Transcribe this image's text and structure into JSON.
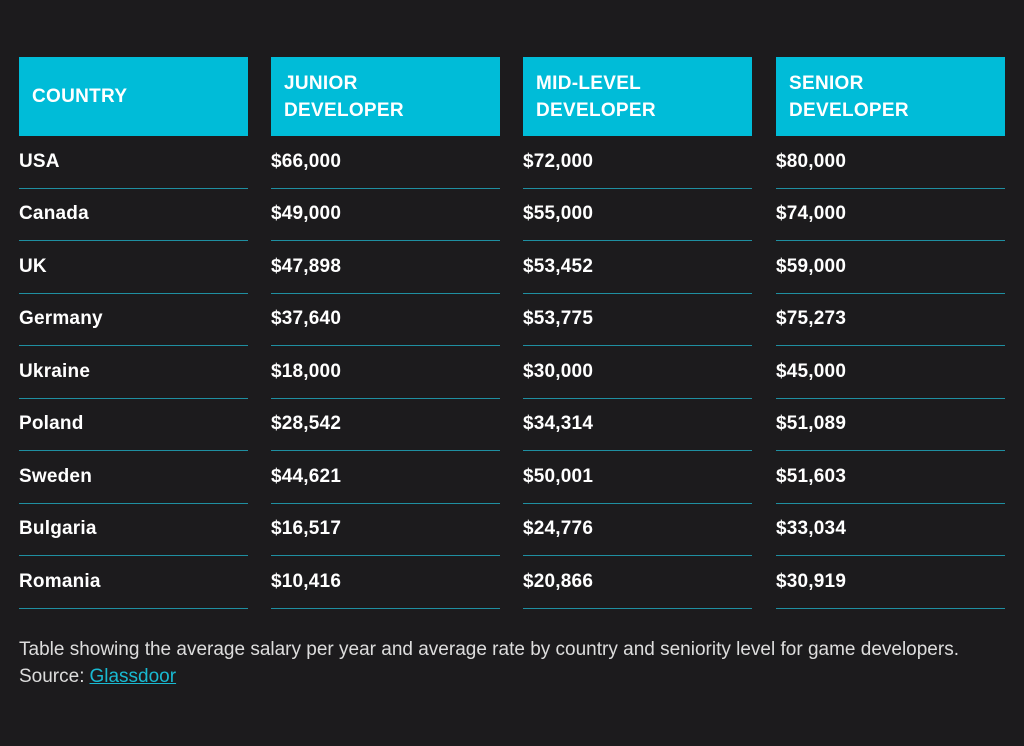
{
  "table": {
    "header": [
      "COUNTRY",
      "JUNIOR DEVELOPER",
      "MID-LEVEL DEVELOPER",
      "SENIOR DEVELOPER"
    ],
    "rows": [
      [
        "USA",
        "$66,000",
        "$72,000",
        "$80,000"
      ],
      [
        "Canada",
        "$49,000",
        "$55,000",
        "$74,000"
      ],
      [
        "UK",
        "$47,898",
        "$53,452",
        "$59,000"
      ],
      [
        "Germany",
        "$37,640",
        "$53,775",
        "$75,273"
      ],
      [
        "Ukraine",
        "$18,000",
        "$30,000",
        "$45,000"
      ],
      [
        "Poland",
        "$28,542",
        "$34,314",
        "$51,089"
      ],
      [
        "Sweden",
        "$44,621",
        "$50,001",
        "$51,603"
      ],
      [
        "Bulgaria",
        "$16,517",
        "$24,776",
        "$33,034"
      ],
      [
        "Romania",
        "$10,416",
        "$20,866",
        "$30,919"
      ]
    ]
  },
  "caption": {
    "text": "Table showing the average salary per year and average rate by country and seniority level for game developers. Source:",
    "link": "Glassdoor"
  }
}
